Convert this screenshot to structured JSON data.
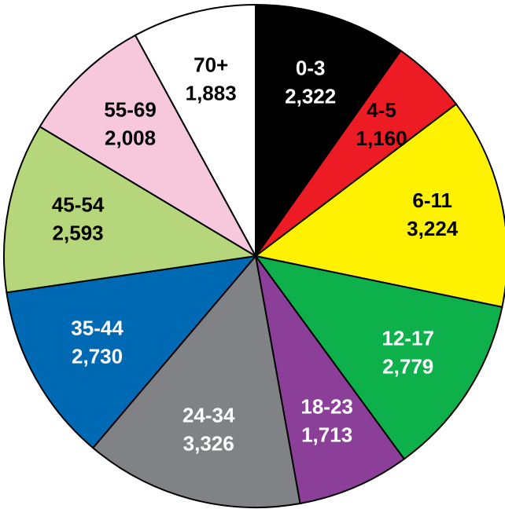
{
  "chart_data": {
    "type": "pie",
    "categories": [
      "0-3",
      "4-5",
      "6-11",
      "12-17",
      "18-23",
      "24-34",
      "35-44",
      "45-54",
      "55-69",
      "70+"
    ],
    "values": [
      2322,
      1160,
      3224,
      2779,
      1713,
      3326,
      2730,
      2593,
      2008,
      1883
    ],
    "value_labels": [
      "2,322",
      "1,160",
      "3,224",
      "2,779",
      "1,713",
      "3,326",
      "2,730",
      "2,593",
      "2,008",
      "1,883"
    ],
    "colors": [
      "#000000",
      "#ed1c24",
      "#fff200",
      "#0db04b",
      "#8b3f98",
      "#808285",
      "#0069b4",
      "#b5d67a",
      "#f7c8dc",
      "#ffffff"
    ]
  }
}
